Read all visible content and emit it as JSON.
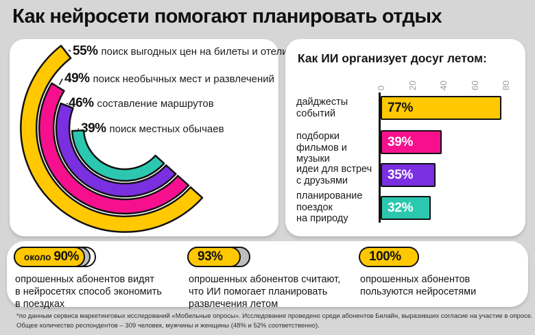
{
  "page": {
    "title": "Как нейросети помогают планировать отдых"
  },
  "chart_data": [
    {
      "type": "radial_bar",
      "panel": "left",
      "unit": "%",
      "direction": "counterclockwise",
      "categories": [
        "поиск выгодных цен на билеты и отели",
        "поиск необычных мест и развлечений",
        "составление маршрутов",
        "поиск местных обычаев"
      ],
      "values": [
        55,
        49,
        46,
        39
      ],
      "value_labels": [
        "55%",
        "49%",
        "46%",
        "39%"
      ],
      "colors": [
        "#ffc800",
        "#f6108e",
        "#7a2fe1",
        "#2bc8af"
      ]
    },
    {
      "type": "bar",
      "panel": "right",
      "orientation": "horizontal",
      "title": "Как ИИ организует досуг летом:",
      "categories": [
        "дайджесты\nсобытий",
        "подборки\nфильмов и музыки",
        "идеи для встреч\nс друзьями",
        "планирование\nпоездок\nна природу"
      ],
      "values": [
        77,
        39,
        35,
        32
      ],
      "value_labels": [
        "77%",
        "39%",
        "35%",
        "32%"
      ],
      "colors": [
        "#ffc800",
        "#f6108e",
        "#7a2fe1",
        "#2bc8af"
      ],
      "value_label_colors": [
        "#141414",
        "#ffffff",
        "#ffffff",
        "#ffffff"
      ],
      "xlim": [
        0,
        80
      ],
      "ticks": [
        "0",
        "20",
        "40",
        "60",
        "80"
      ],
      "grid": false,
      "legend": false
    }
  ],
  "stats": [
    {
      "badge_prefix": "около",
      "badge_value": "90%",
      "fill_pct": 90,
      "text": "опрошенных абонентов видят\nв нейросетях способ экономить\nв поездках"
    },
    {
      "badge_prefix": "",
      "badge_value": "93%",
      "fill_pct": 93,
      "text": "опрошенных абонентов считают,\nчто ИИ помогает планировать\nразвлечения летом"
    },
    {
      "badge_prefix": "",
      "badge_value": "100%",
      "fill_pct": 100,
      "text": "опрошенных абонентов\nпользуются нейросетями"
    }
  ],
  "footnote": {
    "line1": "*по данным сервиса маркетинговых исследований «Мобильные опросы». Исследование проведено среди абонентов Билайн, выразивших согласие на участие в опросе.",
    "line2": "Общее количество респондентов – 309 человек, мужчины и женщины (48% и 52% соответственно)."
  },
  "colors": {
    "yellow": "#ffc800",
    "pink": "#f6108e",
    "purple": "#7a2fe1",
    "teal": "#2bc8af",
    "badge_shadow": "#bdbdbd",
    "panel": "#ffffff",
    "background": "#d6d6d6",
    "text": "#111111",
    "tick": "#9e9e9e"
  }
}
